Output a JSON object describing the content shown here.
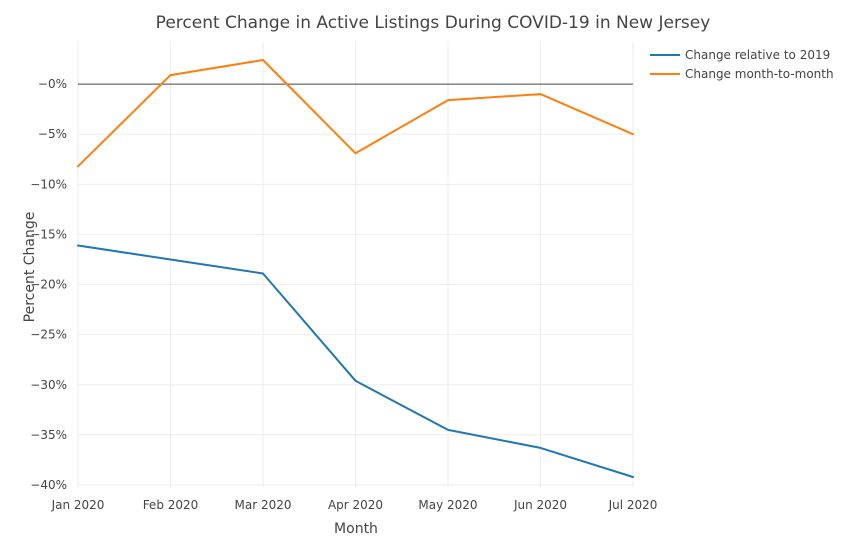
{
  "chart_data": {
    "type": "line",
    "title": "Percent Change in Active Listings During COVID-19 in New Jersey",
    "xlabel": "Month",
    "ylabel": "Percent Change",
    "categories": [
      "Jan 2020",
      "Feb 2020",
      "Mar 2020",
      "Apr 2020",
      "May 2020",
      "Jun 2020",
      "Jul 2020"
    ],
    "x_dates": [
      "2020-01-01",
      "2020-02-01",
      "2020-03-01",
      "2020-04-01",
      "2020-05-01",
      "2020-06-01",
      "2020-07-01"
    ],
    "ylim": [
      -40.2,
      4.3
    ],
    "yticks": [
      0,
      -5,
      -10,
      -15,
      -20,
      -25,
      -30,
      -35,
      -40
    ],
    "ytick_labels": [
      "−0%",
      "−5%",
      "−10%",
      "−15%",
      "−20%",
      "−25%",
      "−30%",
      "−35%",
      "−40%"
    ],
    "grid": true,
    "zero_line": true,
    "legend_position": "top-right",
    "series": [
      {
        "name": "Change relative to 2019",
        "color": "#1f77b4",
        "values": [
          -16.1,
          -17.5,
          -18.9,
          -29.6,
          -34.5,
          -36.3,
          -39.2
        ]
      },
      {
        "name": "Change month-to-month",
        "color": "#ff7f0e",
        "values": [
          -8.2,
          0.9,
          2.4,
          -6.9,
          -1.6,
          -1.0,
          -5.0
        ]
      }
    ]
  }
}
